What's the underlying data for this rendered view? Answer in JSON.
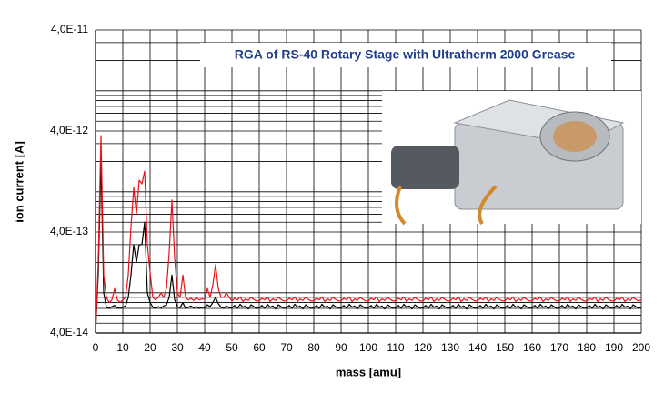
{
  "chart_data": {
    "type": "line",
    "title": "RGA of RS-40 Rotary Stage with Ultratherm 2000 Grease",
    "xlabel": "mass [amu]",
    "ylabel": "ion current [A]",
    "log_y": true,
    "grid": true,
    "xlim": [
      0,
      200
    ],
    "ylim": [
      4e-14,
      4e-11
    ],
    "xticks": [
      0,
      10,
      20,
      30,
      40,
      50,
      60,
      70,
      80,
      90,
      100,
      110,
      120,
      130,
      140,
      150,
      160,
      170,
      180,
      190,
      200
    ],
    "yticks": [
      {
        "value": 4e-14,
        "label": "4,0E-14"
      },
      {
        "value": 4e-13,
        "label": "4,0E-13"
      },
      {
        "value": 4e-12,
        "label": "4,0E-12"
      },
      {
        "value": 4e-11,
        "label": "4,0E-11"
      }
    ],
    "y_minor_grid": [
      5e-14,
      6e-14,
      7e-14,
      8e-14,
      9e-14,
      1e-13,
      2e-13,
      3e-13,
      5e-13,
      6e-13,
      7e-13,
      8e-13,
      9e-13,
      1e-12,
      2e-12,
      3e-12,
      5e-12,
      6e-12,
      7e-12,
      8e-12,
      9e-12,
      1e-11,
      2e-11,
      3e-11
    ],
    "x": [
      0,
      1,
      2,
      3,
      4,
      5,
      6,
      7,
      8,
      9,
      10,
      11,
      12,
      13,
      14,
      15,
      16,
      17,
      18,
      19,
      20,
      21,
      22,
      23,
      24,
      25,
      26,
      27,
      28,
      29,
      30,
      31,
      32,
      33,
      34,
      35,
      36,
      37,
      38,
      39,
      40,
      41,
      42,
      43,
      44,
      45,
      46,
      47,
      48,
      49,
      50,
      51,
      52,
      53,
      54,
      55,
      56,
      57,
      58,
      59,
      60,
      61,
      62,
      63,
      64,
      65,
      66,
      67,
      68,
      69,
      70,
      71,
      72,
      73,
      74,
      75,
      76,
      77,
      78,
      79,
      80,
      81,
      82,
      83,
      84,
      85,
      86,
      87,
      88,
      89,
      90,
      91,
      92,
      93,
      94,
      95,
      96,
      97,
      98,
      99,
      100,
      101,
      102,
      103,
      104,
      105,
      106,
      107,
      108,
      109,
      110,
      111,
      112,
      113,
      114,
      115,
      116,
      117,
      118,
      119,
      120,
      121,
      122,
      123,
      124,
      125,
      126,
      127,
      128,
      129,
      130,
      131,
      132,
      133,
      134,
      135,
      136,
      137,
      138,
      139,
      140,
      141,
      142,
      143,
      144,
      145,
      146,
      147,
      148,
      149,
      150,
      151,
      152,
      153,
      154,
      155,
      156,
      157,
      158,
      159,
      160,
      161,
      162,
      163,
      164,
      165,
      166,
      167,
      168,
      169,
      170,
      171,
      172,
      173,
      174,
      175,
      176,
      177,
      178,
      179,
      180,
      181,
      182,
      183,
      184,
      185,
      186,
      187,
      188,
      189,
      190,
      191,
      192,
      193,
      194,
      195,
      196,
      197,
      198,
      199,
      200
    ],
    "series": [
      {
        "color": "#000000",
        "values": [
          4e-14,
          1.5e-13,
          2e-12,
          1e-13,
          7.2e-14,
          7e-14,
          7.3e-14,
          7.5e-14,
          7.1e-14,
          7e-14,
          7.2e-14,
          7.4e-14,
          9e-14,
          1.5e-13,
          3e-13,
          2e-13,
          3e-13,
          3e-13,
          5e-13,
          1e-13,
          8e-14,
          7.2e-14,
          7e-14,
          7.3e-14,
          7.1e-14,
          7.4e-14,
          7.6e-14,
          9e-14,
          1.5e-13,
          8.5e-14,
          7.3e-14,
          7.1e-14,
          8e-14,
          7e-14,
          7.2e-14,
          7.4e-14,
          7.1e-14,
          7.3e-14,
          7e-14,
          7.2e-14,
          7.1e-14,
          7.6e-14,
          7.3e-14,
          8e-14,
          9e-14,
          7.8e-14,
          7.2e-14,
          7e-14,
          7.4e-14,
          7.1e-14,
          7.1e-14,
          7.5e-14,
          7e-14,
          7.7e-14,
          7.2e-14,
          7.4e-14,
          6.9e-14,
          7.6e-14,
          7.3e-14,
          7e-14,
          7.1e-14,
          7.5e-14,
          7e-14,
          7.7e-14,
          7.2e-14,
          7.4e-14,
          6.9e-14,
          7.6e-14,
          7.3e-14,
          7e-14,
          7.1e-14,
          7.5e-14,
          7e-14,
          7.7e-14,
          7.2e-14,
          7.4e-14,
          6.9e-14,
          7.6e-14,
          7.3e-14,
          7e-14,
          7.1e-14,
          7.5e-14,
          7e-14,
          7.7e-14,
          7.2e-14,
          7.4e-14,
          6.9e-14,
          7.6e-14,
          7.3e-14,
          7e-14,
          7.1e-14,
          7.5e-14,
          7e-14,
          7.7e-14,
          7.2e-14,
          7.4e-14,
          6.9e-14,
          7.6e-14,
          7.3e-14,
          7e-14,
          7.1e-14,
          7.5e-14,
          7e-14,
          7.7e-14,
          7.2e-14,
          7.4e-14,
          6.9e-14,
          7.6e-14,
          7.3e-14,
          7e-14,
          7.1e-14,
          7.5e-14,
          7e-14,
          7.7e-14,
          7.2e-14,
          7.4e-14,
          6.9e-14,
          7.6e-14,
          7.3e-14,
          7e-14,
          7.1e-14,
          7.5e-14,
          7e-14,
          7.7e-14,
          7.2e-14,
          7.4e-14,
          6.9e-14,
          7.6e-14,
          7.3e-14,
          7e-14,
          7.1e-14,
          7.5e-14,
          7e-14,
          7.7e-14,
          7.2e-14,
          7.4e-14,
          6.9e-14,
          7.6e-14,
          7.3e-14,
          7e-14,
          7.1e-14,
          7.5e-14,
          7e-14,
          7.7e-14,
          7.2e-14,
          7.4e-14,
          6.9e-14,
          7.6e-14,
          7.3e-14,
          7e-14,
          7.1e-14,
          7.5e-14,
          7e-14,
          7.7e-14,
          7.2e-14,
          7.4e-14,
          6.9e-14,
          7.6e-14,
          7.3e-14,
          7e-14,
          7.1e-14,
          7.5e-14,
          7e-14,
          7.7e-14,
          7.2e-14,
          7.4e-14,
          6.9e-14,
          7.6e-14,
          7.3e-14,
          7e-14,
          7.1e-14,
          7.5e-14,
          7e-14,
          7.7e-14,
          7.2e-14,
          7.4e-14,
          6.9e-14,
          7.6e-14,
          7.3e-14,
          7e-14,
          7.1e-14,
          7.5e-14,
          7e-14,
          7.7e-14,
          7.2e-14,
          7.4e-14,
          6.9e-14,
          7.6e-14,
          7.3e-14,
          7e-14,
          7.1e-14,
          7.5e-14,
          7e-14,
          7.7e-14,
          7.2e-14,
          7.4e-14,
          6.9e-14,
          7.6e-14,
          7.3e-14,
          7e-14,
          7.2e-14
        ]
      },
      {
        "color": "#e8121b",
        "values": [
          4e-14,
          2e-13,
          3.6e-12,
          1.5e-13,
          9e-14,
          8e-14,
          8.5e-14,
          1.1e-13,
          8.5e-14,
          8e-14,
          8.5e-14,
          9e-14,
          1.5e-13,
          4.5e-13,
          1.1e-12,
          6e-13,
          1.3e-12,
          1.2e-12,
          1.6e-12,
          3e-13,
          1.6e-13,
          9e-14,
          8.5e-14,
          9e-14,
          1e-13,
          9e-14,
          1.1e-13,
          2.5e-13,
          8.3e-13,
          2.2e-13,
          1e-13,
          9e-14,
          1.5e-13,
          9e-14,
          8.5e-14,
          8.8e-14,
          8.4e-14,
          8.9e-14,
          8.5e-14,
          8.7e-14,
          8.6e-14,
          1.1e-13,
          9e-14,
          1.2e-13,
          1.9e-13,
          1.1e-13,
          9e-14,
          9e-14,
          1e-13,
          9e-14,
          8.3e-14,
          8.8e-14,
          8.5e-14,
          9.1e-14,
          8.2e-14,
          8.7e-14,
          8.4e-14,
          9e-14,
          8.6e-14,
          8.3e-14,
          8.3e-14,
          8.8e-14,
          8.5e-14,
          9.1e-14,
          8.2e-14,
          8.7e-14,
          8.4e-14,
          9e-14,
          8.6e-14,
          8.3e-14,
          8.3e-14,
          8.8e-14,
          8.5e-14,
          9.1e-14,
          8.2e-14,
          8.7e-14,
          8.4e-14,
          9e-14,
          8.6e-14,
          8.3e-14,
          8.3e-14,
          8.8e-14,
          8.5e-14,
          9.1e-14,
          8.2e-14,
          8.7e-14,
          8.4e-14,
          9e-14,
          8.6e-14,
          8.3e-14,
          8.3e-14,
          8.8e-14,
          8.5e-14,
          9.1e-14,
          8.2e-14,
          8.7e-14,
          8.4e-14,
          9e-14,
          8.6e-14,
          8.3e-14,
          8.3e-14,
          8.8e-14,
          8.5e-14,
          9.1e-14,
          8.2e-14,
          8.7e-14,
          8.4e-14,
          9e-14,
          8.6e-14,
          8.3e-14,
          8.3e-14,
          8.8e-14,
          8.5e-14,
          9.1e-14,
          8.2e-14,
          8.7e-14,
          8.4e-14,
          9e-14,
          8.6e-14,
          8.3e-14,
          8.3e-14,
          8.8e-14,
          8.5e-14,
          9.1e-14,
          8.2e-14,
          8.7e-14,
          8.4e-14,
          9e-14,
          8.6e-14,
          8.3e-14,
          8.3e-14,
          8.8e-14,
          8.5e-14,
          9.1e-14,
          8.2e-14,
          8.7e-14,
          8.4e-14,
          9e-14,
          8.6e-14,
          8.3e-14,
          8.3e-14,
          8.8e-14,
          8.5e-14,
          9.1e-14,
          8.2e-14,
          8.7e-14,
          8.4e-14,
          9e-14,
          8.6e-14,
          8.3e-14,
          8.3e-14,
          8.8e-14,
          8.5e-14,
          9.1e-14,
          8.2e-14,
          8.7e-14,
          8.4e-14,
          9e-14,
          8.6e-14,
          8.3e-14,
          8.3e-14,
          8.8e-14,
          8.5e-14,
          9.1e-14,
          8.2e-14,
          8.7e-14,
          8.4e-14,
          9e-14,
          8.6e-14,
          8.3e-14,
          8.3e-14,
          8.8e-14,
          8.5e-14,
          9.1e-14,
          8.2e-14,
          8.7e-14,
          8.4e-14,
          9e-14,
          8.6e-14,
          8.3e-14,
          8.3e-14,
          8.8e-14,
          8.5e-14,
          9.1e-14,
          8.2e-14,
          8.7e-14,
          8.4e-14,
          9e-14,
          8.6e-14,
          8.3e-14,
          8.3e-14,
          8.8e-14,
          8.5e-14,
          9.1e-14,
          8.2e-14,
          8.7e-14,
          8.4e-14,
          9e-14,
          8.6e-14,
          8.3e-14,
          8.5e-14
        ]
      }
    ]
  }
}
